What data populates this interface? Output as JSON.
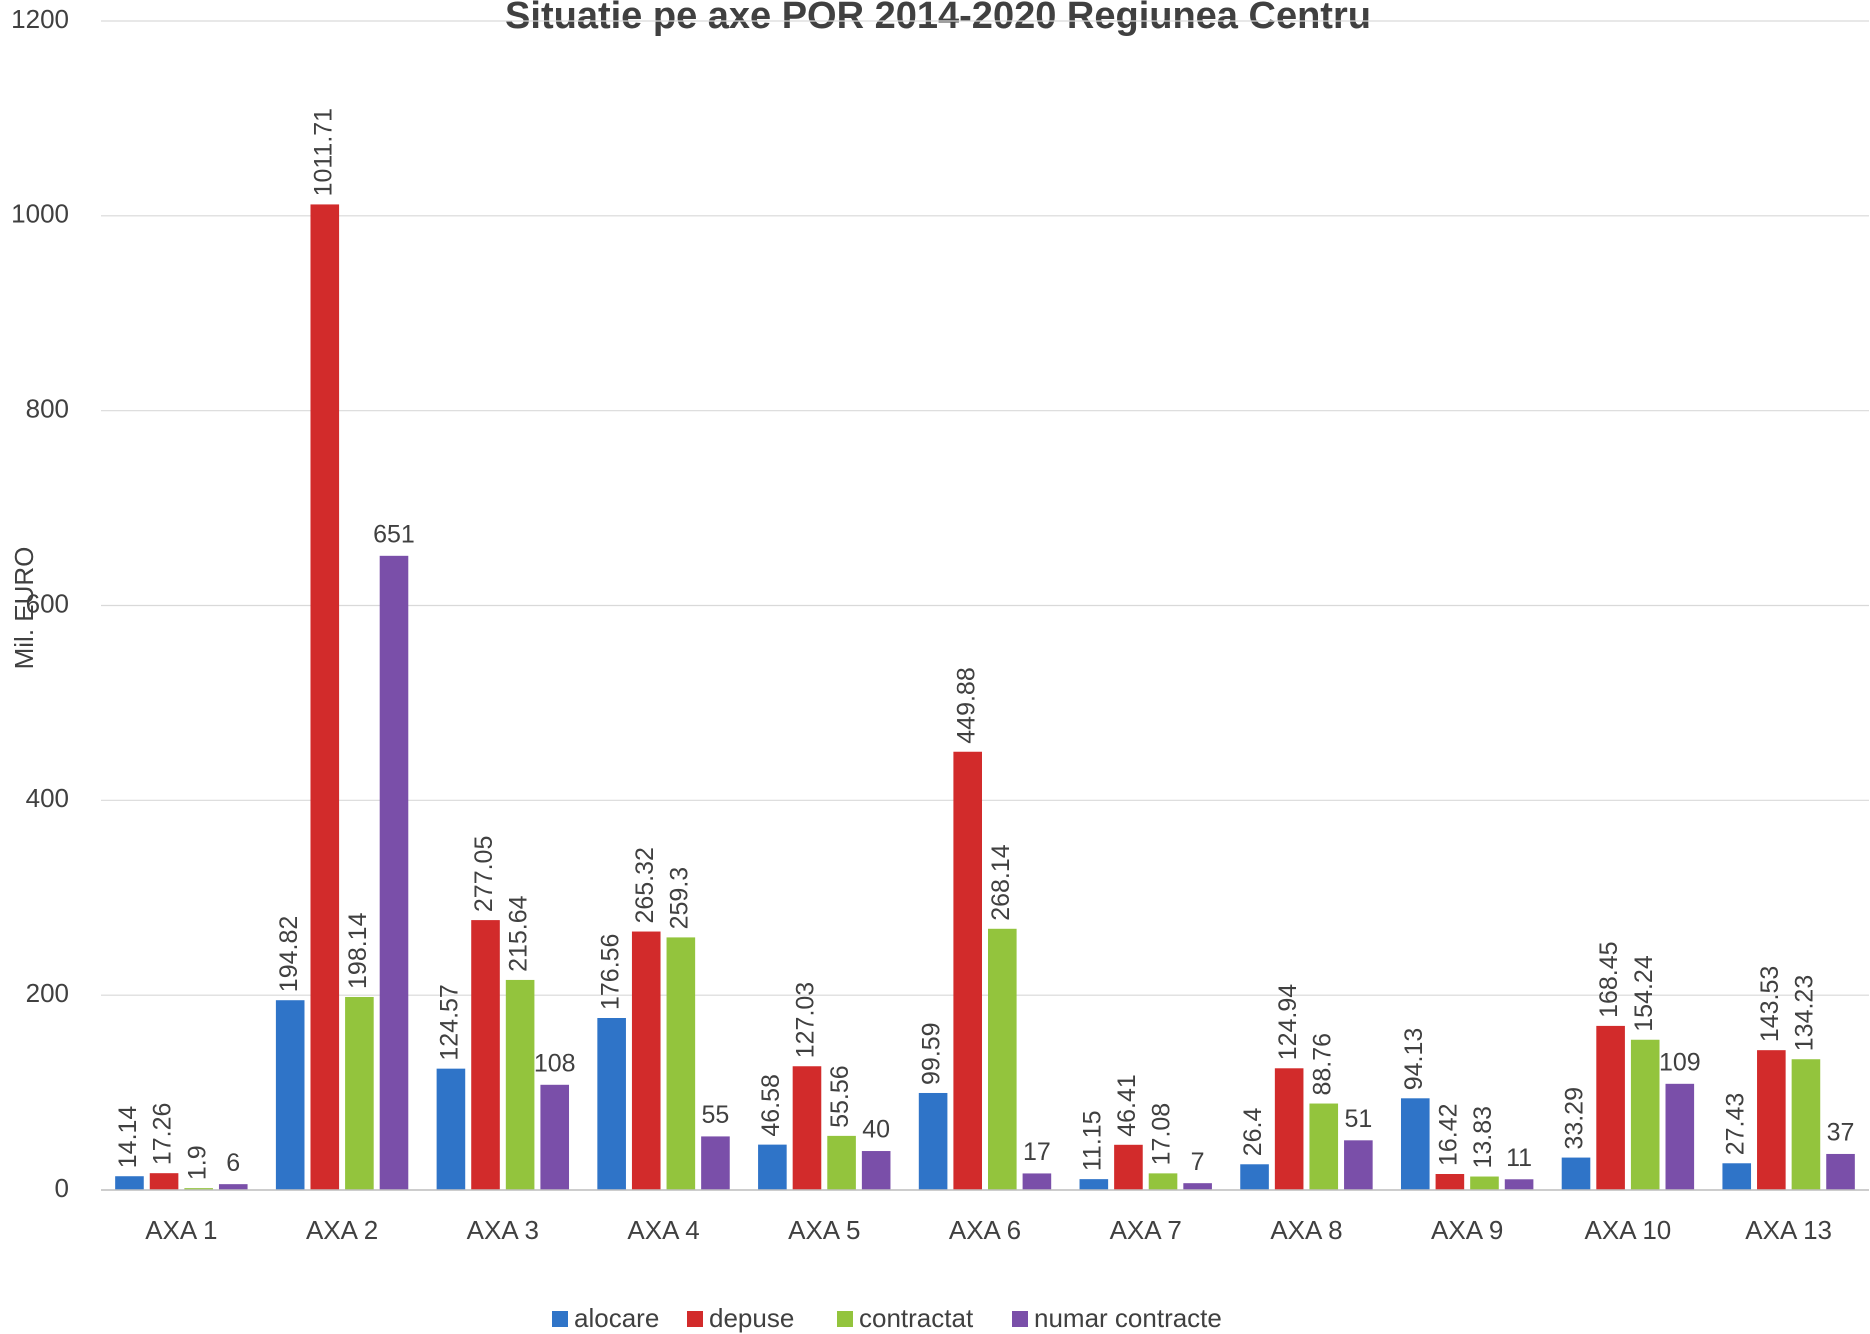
{
  "chart_data": {
    "type": "bar",
    "title": "Situatie pe axe POR 2014-2020 Regiunea Centru",
    "y_label": "Mil. EURO",
    "categories": [
      "AXA 1",
      "AXA 2",
      "AXA 3",
      "AXA 4",
      "AXA 5",
      "AXA 6",
      "AXA 7",
      "AXA 8",
      "AXA 9",
      "AXA 10",
      "AXA 13"
    ],
    "series": [
      {
        "name": "alocare",
        "color": "#2f74c8",
        "values": [
          14.14,
          194.82,
          124.57,
          176.56,
          46.58,
          99.59,
          11.15,
          26.4,
          94.13,
          33.29,
          27.43
        ]
      },
      {
        "name": "depuse",
        "color": "#d22b2b",
        "values": [
          17.26,
          1011.71,
          277.05,
          265.32,
          127.03,
          449.88,
          46.41,
          124.94,
          16.42,
          168.45,
          143.53
        ]
      },
      {
        "name": "contractat",
        "color": "#93c43d",
        "values": [
          1.9,
          198.14,
          215.64,
          259.3,
          55.56,
          268.14,
          17.08,
          88.76,
          13.83,
          154.24,
          134.23
        ]
      },
      {
        "name": "numar contracte",
        "color": "#7a4fa9",
        "values": [
          6,
          651,
          108,
          55,
          40,
          17,
          7,
          51,
          11,
          109,
          37
        ]
      }
    ],
    "ylim": [
      0,
      1200
    ],
    "yticks": [
      0,
      200,
      400,
      600,
      800,
      1000,
      1200
    ],
    "grid": true,
    "legend": "bottom"
  }
}
